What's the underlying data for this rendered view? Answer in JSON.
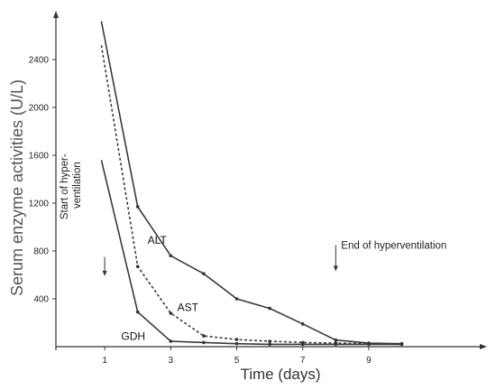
{
  "chart_data": {
    "type": "line",
    "xlabel": "Time (days)",
    "ylabel": "Serum enzyme activities (U/L)",
    "xlim": [
      -0.5,
      10.8
    ],
    "ylim": [
      0,
      2800
    ],
    "x_ticks": [
      1,
      3,
      5,
      7,
      9
    ],
    "y_ticks": [
      400,
      800,
      1200,
      1600,
      2000,
      2400
    ],
    "grid": false,
    "legend": "none",
    "series": [
      {
        "name": "ALT",
        "style": "solid",
        "x": [
          0.9,
          2.0,
          3.0,
          4.0,
          5.0,
          6.0,
          7.0,
          8.0,
          9.0,
          10.0
        ],
        "y": [
          2720,
          1170,
          760,
          610,
          400,
          320,
          190,
          55,
          30,
          25
        ]
      },
      {
        "name": "AST",
        "style": "dashed",
        "x": [
          0.9,
          2.0,
          3.0,
          4.0,
          5.0,
          6.0,
          7.0,
          8.0,
          9.0,
          10.0
        ],
        "y": [
          2520,
          670,
          280,
          90,
          60,
          45,
          35,
          30,
          25,
          20
        ]
      },
      {
        "name": "GDH",
        "style": "solid",
        "x": [
          0.9,
          2.0,
          3.0,
          4.0,
          5.0,
          6.0,
          7.0,
          8.0,
          9.0,
          10.0
        ],
        "y": [
          1560,
          290,
          45,
          35,
          25,
          20,
          20,
          20,
          20,
          20
        ]
      }
    ],
    "annotations": [
      {
        "id": "start",
        "lines": [
          "Start of hyper-",
          "ventilation"
        ],
        "arrow_x": 1.0,
        "arrow_from": 750,
        "arrow_to": 590
      },
      {
        "id": "end",
        "text": "End of hyperventilation",
        "arrow_x": 8.0,
        "arrow_from": 850,
        "arrow_to": 630
      }
    ]
  }
}
